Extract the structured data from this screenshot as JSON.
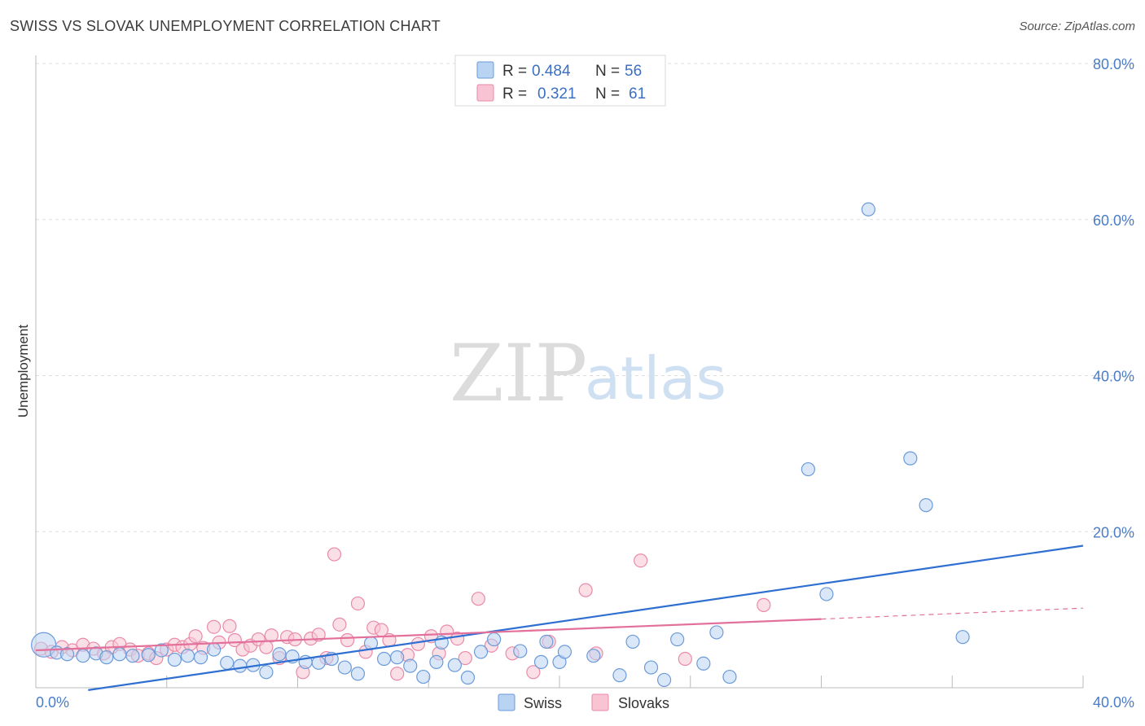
{
  "title": "SWISS VS SLOVAK UNEMPLOYMENT CORRELATION CHART",
  "source": "Source: ZipAtlas.com",
  "watermark": {
    "zip": "ZIP",
    "atlas": "atlas"
  },
  "colors": {
    "swiss_fill": "#b9d3f3",
    "swiss_stroke": "#6b9bd8",
    "swiss_line": "#2f6fd1",
    "slovak_fill": "#f8c4d4",
    "slovak_stroke": "#e98aa8",
    "slovak_line": "#e2709a",
    "axis_text": "#4a7cc7",
    "grid": "#dddddd"
  },
  "legend": {
    "rows": [
      {
        "name": "Swiss",
        "r_label": "R =",
        "r_value": "0.484",
        "n_label": "N =",
        "n_value": "56"
      },
      {
        "name": "Slovaks",
        "r_label": "R =",
        "r_value": "0.321",
        "n_label": "N =",
        "n_value": "61"
      }
    ]
  },
  "chart_data": {
    "type": "scatter",
    "title": "SWISS VS SLOVAK UNEMPLOYMENT CORRELATION CHART",
    "xlabel": "",
    "ylabel": "Unemployment",
    "xlim": [
      0,
      40
    ],
    "ylim": [
      0,
      80
    ],
    "x_tick_labels": [
      "0.0%",
      "40.0%"
    ],
    "y_tick_labels": [
      "20.0%",
      "40.0%",
      "60.0%",
      "80.0%"
    ],
    "y_ticks": [
      20,
      40,
      60,
      80
    ],
    "grid": true,
    "legend_position": "top-center",
    "series": [
      {
        "name": "Swiss",
        "trend": {
          "x": [
            2.0,
            40.0
          ],
          "y": [
            -0.3,
            18.2
          ],
          "dashed_from": null
        },
        "points": [
          [
            0.3,
            5.5
          ],
          [
            0.8,
            4.5
          ],
          [
            1.2,
            4.3
          ],
          [
            1.8,
            4.1
          ],
          [
            2.3,
            4.4
          ],
          [
            2.7,
            3.9
          ],
          [
            3.2,
            4.3
          ],
          [
            3.7,
            4.1
          ],
          [
            4.3,
            4.2
          ],
          [
            4.8,
            4.8
          ],
          [
            5.3,
            3.6
          ],
          [
            5.8,
            4.1
          ],
          [
            6.3,
            3.9
          ],
          [
            6.8,
            4.9
          ],
          [
            7.3,
            3.2
          ],
          [
            7.8,
            2.8
          ],
          [
            8.3,
            2.9
          ],
          [
            8.8,
            2.0
          ],
          [
            9.3,
            4.3
          ],
          [
            9.8,
            4.0
          ],
          [
            10.3,
            3.3
          ],
          [
            10.8,
            3.2
          ],
          [
            11.3,
            3.7
          ],
          [
            11.8,
            2.6
          ],
          [
            12.3,
            1.8
          ],
          [
            12.8,
            5.7
          ],
          [
            13.3,
            3.7
          ],
          [
            13.8,
            3.9
          ],
          [
            14.3,
            2.8
          ],
          [
            14.8,
            1.4
          ],
          [
            15.3,
            3.3
          ],
          [
            15.5,
            5.8
          ],
          [
            16.0,
            2.9
          ],
          [
            16.5,
            1.3
          ],
          [
            17.0,
            4.6
          ],
          [
            17.5,
            6.2
          ],
          [
            18.5,
            4.7
          ],
          [
            19.3,
            3.3
          ],
          [
            19.5,
            5.9
          ],
          [
            20.0,
            3.3
          ],
          [
            20.2,
            4.6
          ],
          [
            21.3,
            4.1
          ],
          [
            22.3,
            1.6
          ],
          [
            22.8,
            5.9
          ],
          [
            23.5,
            2.6
          ],
          [
            24.0,
            1.0
          ],
          [
            24.5,
            6.2
          ],
          [
            25.5,
            3.1
          ],
          [
            26.0,
            7.1
          ],
          [
            26.5,
            1.4
          ],
          [
            29.5,
            28.0
          ],
          [
            30.2,
            12.0
          ],
          [
            31.8,
            61.3
          ],
          [
            33.4,
            29.4
          ],
          [
            34.0,
            23.4
          ],
          [
            35.4,
            6.5
          ]
        ]
      },
      {
        "name": "Slovaks",
        "trend": {
          "x": [
            0.0,
            30.0,
            40.0
          ],
          "y": [
            4.8,
            8.8,
            10.2
          ],
          "dashed_from": 30.0
        },
        "points": [
          [
            0.2,
            5.0
          ],
          [
            0.6,
            4.6
          ],
          [
            1.0,
            5.2
          ],
          [
            1.4,
            4.8
          ],
          [
            1.8,
            5.5
          ],
          [
            2.2,
            5.0
          ],
          [
            2.6,
            4.4
          ],
          [
            2.9,
            5.2
          ],
          [
            3.2,
            5.6
          ],
          [
            3.6,
            4.9
          ],
          [
            3.9,
            4.1
          ],
          [
            4.3,
            4.4
          ],
          [
            4.6,
            3.8
          ],
          [
            5.0,
            4.9
          ],
          [
            5.3,
            5.5
          ],
          [
            5.6,
            5.2
          ],
          [
            5.9,
            5.6
          ],
          [
            6.1,
            6.6
          ],
          [
            6.4,
            5.1
          ],
          [
            6.8,
            7.8
          ],
          [
            7.0,
            5.8
          ],
          [
            7.4,
            7.9
          ],
          [
            7.6,
            6.1
          ],
          [
            7.9,
            4.9
          ],
          [
            8.2,
            5.4
          ],
          [
            8.5,
            6.2
          ],
          [
            8.8,
            5.2
          ],
          [
            9.0,
            6.7
          ],
          [
            9.3,
            3.8
          ],
          [
            9.6,
            6.5
          ],
          [
            9.9,
            6.2
          ],
          [
            10.2,
            2.0
          ],
          [
            10.5,
            6.3
          ],
          [
            10.8,
            6.8
          ],
          [
            11.1,
            3.8
          ],
          [
            11.4,
            17.1
          ],
          [
            11.6,
            8.1
          ],
          [
            11.9,
            6.1
          ],
          [
            12.3,
            10.8
          ],
          [
            12.6,
            4.6
          ],
          [
            12.9,
            7.7
          ],
          [
            13.2,
            7.4
          ],
          [
            13.5,
            6.1
          ],
          [
            13.8,
            1.8
          ],
          [
            14.2,
            4.2
          ],
          [
            14.6,
            5.6
          ],
          [
            15.1,
            6.6
          ],
          [
            15.4,
            4.4
          ],
          [
            15.7,
            7.2
          ],
          [
            16.1,
            6.3
          ],
          [
            16.4,
            3.8
          ],
          [
            16.9,
            11.4
          ],
          [
            17.4,
            5.4
          ],
          [
            18.2,
            4.4
          ],
          [
            19.0,
            2.0
          ],
          [
            19.6,
            5.9
          ],
          [
            21.0,
            12.5
          ],
          [
            21.4,
            4.4
          ],
          [
            23.1,
            16.3
          ],
          [
            24.8,
            3.7
          ],
          [
            27.8,
            10.6
          ]
        ]
      }
    ]
  }
}
